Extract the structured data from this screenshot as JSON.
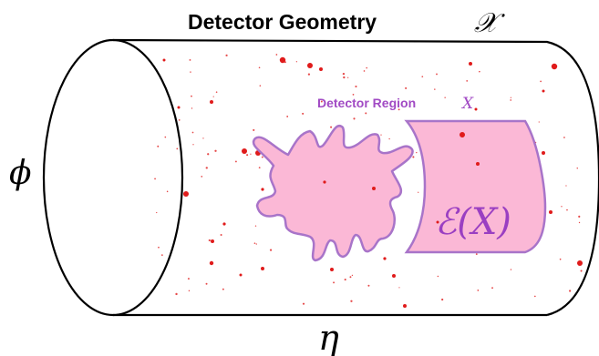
{
  "title": "Detector Geometry",
  "title_symbol": "𝒳",
  "axes": {
    "azimuth": "ϕ",
    "pseudorapidity": "η"
  },
  "region": {
    "label": "Detector Region",
    "symbol": "X"
  },
  "embedding": {
    "label": "ℰ(X)"
  },
  "colors": {
    "outline": "#000000",
    "hit": "#e01b1b",
    "region_fill": "#fbb8d6",
    "region_stroke": "#a874c9",
    "region_text": "#a14ac4"
  }
}
